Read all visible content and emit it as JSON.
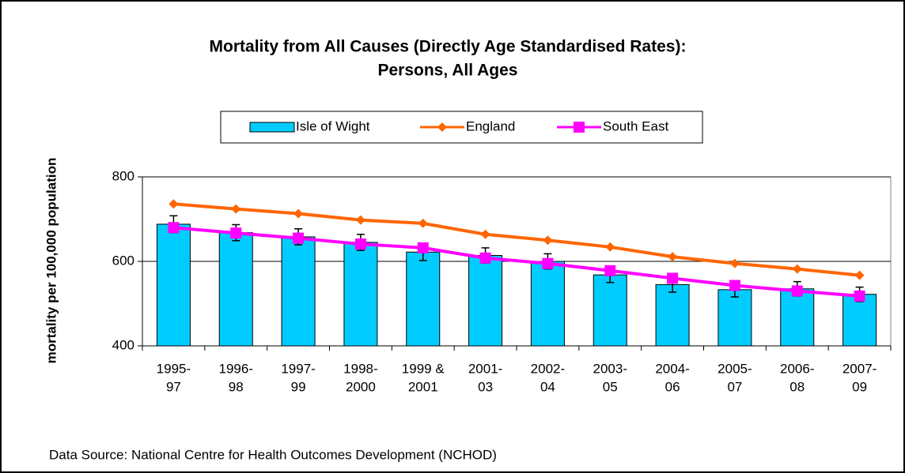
{
  "chart_data": {
    "type": "bar",
    "title": [
      "Mortality from All Causes (Directly Age Standardised Rates):",
      "Persons, All Ages"
    ],
    "y_label": "mortality per 100,000 population",
    "source": "Data Source:  National Centre for Health Outcomes Development (NCHOD)",
    "categories": [
      [
        "1995-",
        "97"
      ],
      [
        "1996-",
        "98"
      ],
      [
        "1997-",
        "99"
      ],
      [
        "1998-",
        "2000"
      ],
      [
        "1999 &",
        "2001"
      ],
      [
        "2001-",
        "03"
      ],
      [
        "2002-",
        "04"
      ],
      [
        "2003-",
        "05"
      ],
      [
        "2004-",
        "06"
      ],
      [
        "2005-",
        "07"
      ],
      [
        "2006-",
        "08"
      ],
      [
        "2007-",
        "09"
      ]
    ],
    "series": [
      {
        "name": "Isle of Wight",
        "type": "bar",
        "color": "#00ccff",
        "values": [
          688,
          668,
          658,
          645,
          622,
          614,
          600,
          568,
          545,
          533,
          535,
          522
        ],
        "errors": [
          20,
          19,
          19,
          19,
          20,
          18,
          18,
          18,
          18,
          17,
          17,
          17
        ]
      },
      {
        "name": "England",
        "type": "line",
        "marker": "diamond",
        "color": "#ff6600",
        "values": [
          736,
          724,
          713,
          698,
          690,
          664,
          650,
          634,
          611,
          595,
          582,
          567
        ]
      },
      {
        "name": "South East",
        "type": "line",
        "marker": "square",
        "color": "#ff00ff",
        "values": [
          680,
          667,
          655,
          641,
          632,
          608,
          595,
          578,
          560,
          543,
          530,
          518
        ]
      }
    ],
    "ylim": [
      400,
      800
    ],
    "yticks": [
      400,
      600,
      800
    ],
    "grid": true,
    "legend": "top"
  }
}
